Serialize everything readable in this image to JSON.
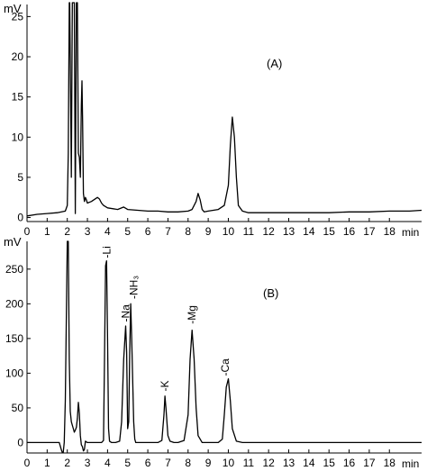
{
  "chart_data": [
    {
      "type": "line",
      "panel_label": "(A)",
      "ylabel": "mV",
      "xlabel": "min",
      "xlim": [
        0,
        19.6
      ],
      "ylim": [
        -0.5,
        26.5
      ],
      "xticks": [
        0,
        1,
        2,
        3,
        4,
        5,
        6,
        7,
        8,
        9,
        10,
        11,
        12,
        13,
        14,
        15,
        16,
        17,
        18
      ],
      "yticks": [
        0,
        5,
        10,
        15,
        20,
        25
      ],
      "grid": false,
      "series": [
        {
          "x": [
            0,
            0.5,
            1.0,
            1.5,
            1.9,
            2.0,
            2.05,
            2.1,
            2.12,
            2.15,
            2.2,
            2.25,
            2.3,
            2.35,
            2.4,
            2.45,
            2.5,
            2.55,
            2.6,
            2.65,
            2.7,
            2.73,
            2.76,
            2.8,
            2.85,
            2.9,
            2.95,
            3.0,
            3.2,
            3.5,
            3.6,
            3.7,
            3.8,
            4.0,
            4.5,
            4.8,
            5.0,
            5.5,
            6.0,
            6.5,
            7.0,
            7.5,
            8.0,
            8.2,
            8.4,
            8.5,
            8.6,
            8.7,
            8.8,
            9.0,
            9.5,
            9.8,
            10.0,
            10.1,
            10.2,
            10.3,
            10.4,
            10.5,
            10.7,
            11.0,
            12.0,
            13.0,
            14.0,
            15.0,
            16.0,
            17.0,
            18.0,
            19.0,
            19.6
          ],
          "y": [
            0.2,
            0.4,
            0.5,
            0.6,
            0.8,
            1.5,
            8,
            27,
            27,
            20,
            5,
            27,
            27,
            27,
            0.5,
            27,
            27,
            8,
            7.5,
            5,
            14,
            17,
            12,
            3,
            2,
            2.5,
            2.2,
            1.8,
            2.0,
            2.5,
            2.3,
            1.8,
            1.5,
            1.2,
            1.0,
            1.3,
            1.0,
            0.9,
            0.8,
            0.8,
            0.7,
            0.7,
            0.8,
            1.0,
            2.0,
            3.0,
            2.2,
            1.0,
            0.7,
            0.8,
            1.0,
            1.5,
            4,
            9,
            12.5,
            10,
            5,
            1.5,
            0.8,
            0.6,
            0.6,
            0.6,
            0.6,
            0.6,
            0.7,
            0.7,
            0.8,
            0.8,
            0.9
          ]
        }
      ]
    },
    {
      "type": "line",
      "panel_label": "(B)",
      "ylabel": "mV",
      "xlabel": "min",
      "xlim": [
        0,
        19.6
      ],
      "ylim": [
        -15,
        290
      ],
      "xticks": [
        0,
        1,
        2,
        3,
        4,
        5,
        6,
        7,
        8,
        9,
        10,
        11,
        12,
        13,
        14,
        15,
        16,
        17,
        18
      ],
      "yticks": [
        0,
        50,
        100,
        150,
        200,
        250
      ],
      "grid": false,
      "peak_labels": [
        {
          "text": "Li",
          "x": 3.95,
          "y": 262
        },
        {
          "text": "Na",
          "x": 4.9,
          "y": 170
        },
        {
          "text": "NH₃",
          "x": 5.3,
          "y": 203
        },
        {
          "text": "K",
          "x": 6.85,
          "y": 70
        },
        {
          "text": "Mg",
          "x": 8.2,
          "y": 167
        },
        {
          "text": "Ca",
          "x": 9.85,
          "y": 92
        }
      ],
      "series": [
        {
          "x": [
            0,
            1.0,
            1.6,
            1.7,
            1.75,
            1.8,
            1.85,
            1.9,
            2.0,
            2.05,
            2.1,
            2.15,
            2.2,
            2.25,
            2.3,
            2.35,
            2.4,
            2.45,
            2.5,
            2.55,
            2.6,
            2.65,
            2.7,
            2.75,
            2.8,
            2.85,
            2.9,
            2.95,
            3.0,
            3.2,
            3.5,
            3.7,
            3.8,
            3.85,
            3.9,
            3.95,
            4.0,
            4.05,
            4.1,
            4.2,
            4.4,
            4.6,
            4.7,
            4.8,
            4.9,
            4.95,
            5.0,
            5.05,
            5.1,
            5.15,
            5.2,
            5.3,
            5.35,
            5.4,
            5.5,
            5.7,
            6.0,
            6.5,
            6.7,
            6.8,
            6.85,
            6.9,
            7.0,
            7.1,
            7.3,
            7.5,
            7.8,
            8.0,
            8.1,
            8.2,
            8.3,
            8.4,
            8.5,
            8.7,
            9.0,
            9.5,
            9.7,
            9.8,
            9.9,
            10.0,
            10.1,
            10.2,
            10.4,
            10.7,
            11.0,
            12.0,
            13.0,
            14.0,
            15.0,
            16.0,
            17.0,
            18.0,
            19.0,
            19.6
          ],
          "y": [
            0,
            0,
            0,
            -10,
            -14,
            -14,
            0,
            60,
            290,
            290,
            120,
            45,
            30,
            25,
            20,
            15,
            18,
            22,
            35,
            58,
            42,
            10,
            -3,
            -6,
            -12,
            -10,
            2,
            1,
            0,
            0,
            0,
            0,
            3,
            120,
            255,
            262,
            150,
            20,
            2,
            0,
            0,
            2,
            30,
            120,
            168,
            130,
            20,
            30,
            130,
            200,
            150,
            30,
            5,
            0,
            0,
            0,
            0,
            0,
            3,
            40,
            67,
            50,
            10,
            2,
            0,
            0,
            3,
            40,
            120,
            162,
            120,
            50,
            10,
            0,
            0,
            0,
            5,
            40,
            80,
            92,
            60,
            20,
            2,
            0,
            0,
            0,
            0,
            0,
            0,
            0,
            0,
            0,
            0,
            0
          ]
        }
      ]
    }
  ]
}
